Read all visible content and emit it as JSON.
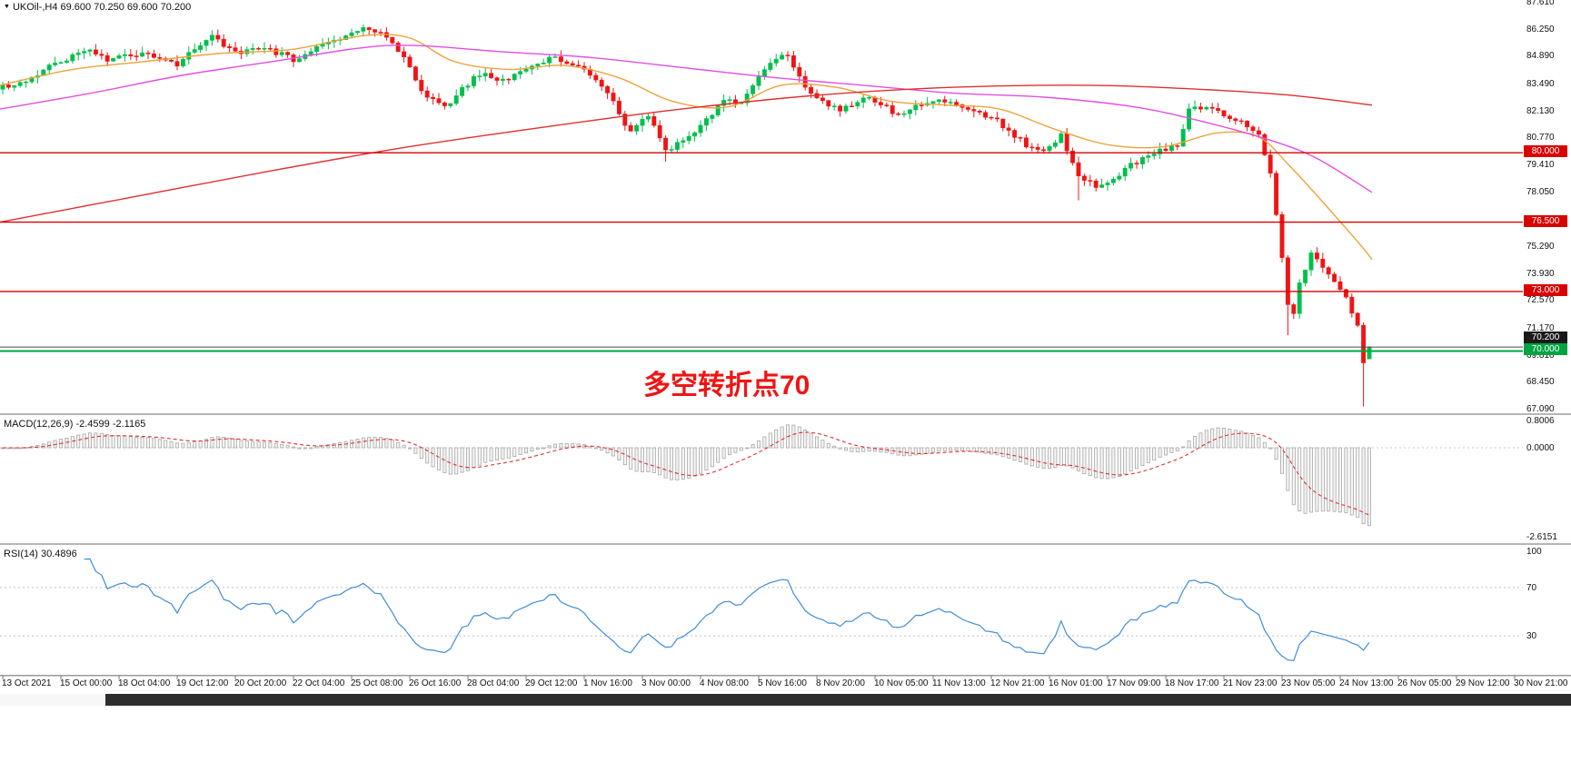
{
  "window": {
    "bg": "#ffffff"
  },
  "header": {
    "icon": "▼",
    "symbol_line": "UKOil-,H4 69.600 70.250 69.600 70.200"
  },
  "annotation": {
    "text": "多空转折点70",
    "color": "#f01414"
  },
  "scrollbar": {
    "thumb_color": "#2d2d2d"
  },
  "chart_data": {
    "type": "candlestick",
    "symbol": "UKOil-",
    "timeframe": "H4",
    "current_bar": {
      "open": 69.6,
      "high": 70.25,
      "low": 69.6,
      "close": 70.2
    },
    "bars_visible": 236,
    "price_axis": {
      "top_value": 87.61,
      "bottom_value": 67.09,
      "labels": [
        "87.610",
        "86.250",
        "84.890",
        "83.490",
        "82.130",
        "80.770",
        "79.410",
        "78.050",
        "75.290",
        "73.930",
        "72.570",
        "71.170",
        "69.810",
        "68.450",
        "67.090"
      ]
    },
    "time_axis": {
      "labels": [
        "13 Oct 2021",
        "15 Oct 00:00",
        "18 Oct 04:00",
        "19 Oct 12:00",
        "20 Oct 20:00",
        "22 Oct 04:00",
        "25 Oct 08:00",
        "26 Oct 16:00",
        "28 Oct 04:00",
        "29 Oct 12:00",
        "1 Nov 16:00",
        "3 Nov 00:00",
        "4 Nov 08:00",
        "5 Nov 16:00",
        "8 Nov 20:00",
        "10 Nov 05:00",
        "11 Nov 13:00",
        "12 Nov 21:00",
        "16 Nov 01:00",
        "17 Nov 09:00",
        "18 Nov 17:00",
        "21 Nov 23:00",
        "23 Nov 05:00",
        "24 Nov 13:00",
        "26 Nov 05:00",
        "29 Nov 12:00",
        "30 Nov 21:00"
      ]
    },
    "levels": [
      {
        "value": 80.0,
        "label": "80.000",
        "color": "#d90000",
        "width": 1.4
      },
      {
        "value": 76.5,
        "label": "76.500",
        "color": "#d90000",
        "width": 1.4
      },
      {
        "value": 73.0,
        "label": "73.000",
        "color": "#d90000",
        "width": 1.4
      },
      {
        "value": 70.0,
        "label": "70.000",
        "color": "#00a443",
        "width": 2
      }
    ],
    "bid": {
      "value": 70.2,
      "label": "70.200",
      "line_color": "#4a4a4a",
      "tag_bg": "#1a1a1a"
    },
    "candle_colors": {
      "up": "#00bf4d",
      "down": "#f01414"
    },
    "close_anchors": [
      [
        0,
        83.3
      ],
      [
        4,
        83.7
      ],
      [
        8,
        84.3
      ],
      [
        14,
        85.2
      ],
      [
        18,
        84.7
      ],
      [
        24,
        85.0
      ],
      [
        30,
        84.5
      ],
      [
        36,
        85.8
      ],
      [
        40,
        85.0
      ],
      [
        45,
        85.3
      ],
      [
        50,
        84.7
      ],
      [
        55,
        85.4
      ],
      [
        60,
        86.0
      ],
      [
        63,
        86.3
      ],
      [
        66,
        85.8
      ],
      [
        69,
        84.9
      ],
      [
        72,
        83.0
      ],
      [
        76,
        82.3
      ],
      [
        79,
        83.2
      ],
      [
        82,
        84.0
      ],
      [
        86,
        83.6
      ],
      [
        90,
        84.2
      ],
      [
        94,
        84.8
      ],
      [
        99,
        84.4
      ],
      [
        102,
        83.7
      ],
      [
        105,
        82.5
      ],
      [
        108,
        81.0
      ],
      [
        111,
        81.9
      ],
      [
        114,
        80.1
      ],
      [
        118,
        80.7
      ],
      [
        121,
        81.6
      ],
      [
        124,
        82.7
      ],
      [
        127,
        82.5
      ],
      [
        131,
        84.3
      ],
      [
        135,
        85.0
      ],
      [
        138,
        83.2
      ],
      [
        141,
        82.6
      ],
      [
        144,
        82.1
      ],
      [
        149,
        82.8
      ],
      [
        154,
        81.9
      ],
      [
        157,
        82.4
      ],
      [
        161,
        82.7
      ],
      [
        166,
        82.2
      ],
      [
        171,
        81.6
      ],
      [
        176,
        80.4
      ],
      [
        179,
        80.0
      ],
      [
        182,
        80.9
      ],
      [
        185,
        78.8
      ],
      [
        188,
        78.3
      ],
      [
        191,
        78.7
      ],
      [
        194,
        79.4
      ],
      [
        198,
        80.0
      ],
      [
        202,
        80.3
      ],
      [
        204,
        82.1
      ],
      [
        207,
        82.4
      ],
      [
        210,
        81.9
      ],
      [
        213,
        81.5
      ],
      [
        216,
        80.9
      ],
      [
        218,
        79.0
      ],
      [
        219,
        77.0
      ],
      [
        220,
        74.8
      ],
      [
        221,
        72.4
      ],
      [
        222,
        72.0
      ],
      [
        223,
        73.4
      ],
      [
        225,
        74.9
      ],
      [
        227,
        74.2
      ],
      [
        229,
        73.4
      ],
      [
        231,
        72.6
      ],
      [
        233,
        71.2
      ],
      [
        234,
        69.4
      ],
      [
        235,
        70.2
      ]
    ],
    "moving_averages": [
      {
        "name": "fast-orange",
        "color": "#eda33c",
        "points": [
          [
            0,
            83.4
          ],
          [
            80,
            84.2
          ],
          [
            160,
            84.6
          ],
          [
            240,
            85.0
          ],
          [
            320,
            85.2
          ],
          [
            400,
            85.9
          ],
          [
            450,
            85.8
          ],
          [
            500,
            84.6
          ],
          [
            560,
            84.2
          ],
          [
            620,
            84.4
          ],
          [
            680,
            83.8
          ],
          [
            740,
            82.6
          ],
          [
            800,
            82.3
          ],
          [
            860,
            83.4
          ],
          [
            920,
            83.3
          ],
          [
            980,
            82.6
          ],
          [
            1040,
            82.4
          ],
          [
            1100,
            82.2
          ],
          [
            1160,
            81.2
          ],
          [
            1220,
            80.4
          ],
          [
            1280,
            80.3
          ],
          [
            1340,
            81.0
          ],
          [
            1385,
            80.8
          ],
          [
            1420,
            79.3
          ],
          [
            1460,
            77.3
          ],
          [
            1500,
            75.2
          ],
          [
            1510,
            74.6
          ]
        ]
      },
      {
        "name": "medium-magenta",
        "color": "#e24fe2",
        "points": [
          [
            0,
            82.2
          ],
          [
            100,
            83.0
          ],
          [
            200,
            83.9
          ],
          [
            300,
            84.6
          ],
          [
            400,
            85.3
          ],
          [
            460,
            85.4
          ],
          [
            550,
            85.1
          ],
          [
            650,
            84.8
          ],
          [
            750,
            84.3
          ],
          [
            850,
            83.8
          ],
          [
            950,
            83.4
          ],
          [
            1050,
            83.0
          ],
          [
            1150,
            82.8
          ],
          [
            1250,
            82.3
          ],
          [
            1330,
            81.5
          ],
          [
            1400,
            80.6
          ],
          [
            1450,
            79.7
          ],
          [
            1510,
            78.0
          ]
        ]
      },
      {
        "name": "slow-red",
        "color": "#e03030",
        "points": [
          [
            0,
            76.5
          ],
          [
            150,
            77.8
          ],
          [
            300,
            79.1
          ],
          [
            450,
            80.3
          ],
          [
            600,
            81.3
          ],
          [
            750,
            82.2
          ],
          [
            900,
            82.9
          ],
          [
            1050,
            83.3
          ],
          [
            1200,
            83.4
          ],
          [
            1320,
            83.2
          ],
          [
            1420,
            82.9
          ],
          [
            1510,
            82.4
          ]
        ]
      }
    ],
    "macd": {
      "header": "MACD(12,26,9) -2.4599 -2.1165",
      "fast": 12,
      "slow": 26,
      "signal": 9,
      "current_macd": -2.4599,
      "current_signal": -2.1165,
      "scale_labels": [
        {
          "text": "0.8006",
          "value": 0.8006
        },
        {
          "text": "0.0000",
          "value": 0
        },
        {
          "text": "-2.6151",
          "value": -2.6151
        }
      ],
      "histogram_color": "#a8a8a8",
      "signal_color": "#e03030"
    },
    "rsi": {
      "header": "RSI(14) 30.4896",
      "period": 14,
      "current": 30.4896,
      "scale_labels": [
        {
          "text": "100",
          "value": 100
        },
        {
          "text": "70",
          "value": 70
        },
        {
          "text": "30",
          "value": 30
        }
      ],
      "levels": [
        70,
        30
      ],
      "line_color": "#3f8cd8"
    }
  }
}
